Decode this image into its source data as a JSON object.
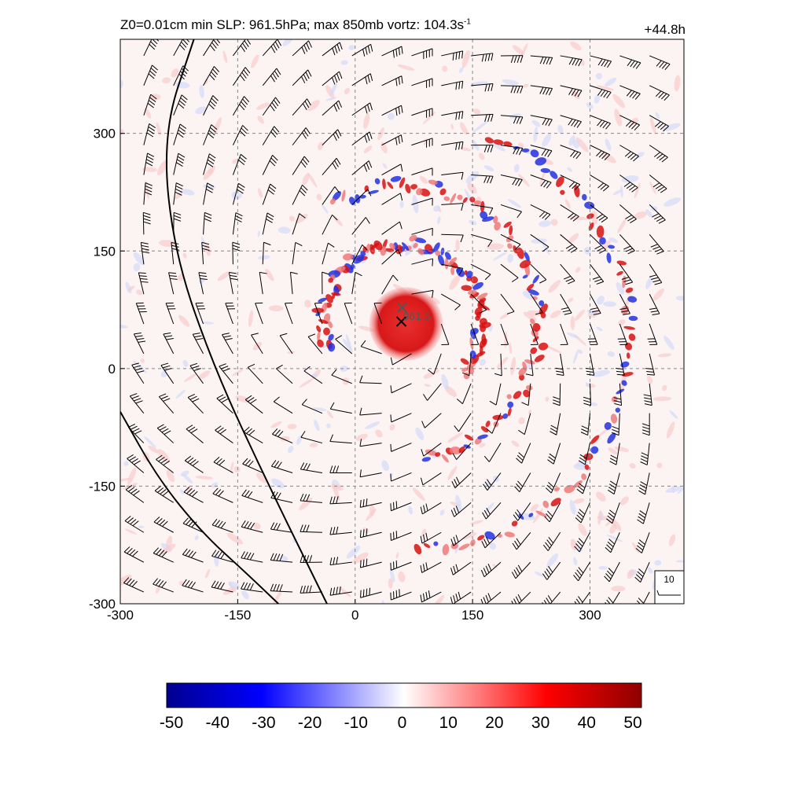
{
  "header": {
    "title_prefix": "Z0=0.01cm  min SLP: 961.5hPa; max 850mb vortz: 104.3s",
    "title_superscript": "-1",
    "time_label": "+44.8h"
  },
  "chart_data": {
    "type": "heatmap",
    "field": "850mb relative vorticity with wind barbs",
    "x_range": [
      -300,
      420
    ],
    "y_range": [
      -300,
      420
    ],
    "x_ticks": [
      -300,
      -150,
      0,
      150,
      300
    ],
    "y_ticks": [
      -300,
      -150,
      0,
      150,
      300
    ],
    "x_tick_labels": [
      "-300",
      "-150",
      "0",
      "150",
      "300"
    ],
    "y_tick_labels": [
      "-300",
      "-150",
      "0",
      "150",
      "300"
    ],
    "grid": true,
    "min_slp": 961.5,
    "min_slp_label": "961.5",
    "max_vorticity": 104.3,
    "center_markers": [
      {
        "x": 60,
        "y": 78
      },
      {
        "x": 59,
        "y": 60
      }
    ],
    "eye_core": {
      "x": 65,
      "y": 57,
      "radius": 47
    },
    "rainbands": [
      {
        "x": 60,
        "y": 60,
        "r": 100,
        "start_deg": -40,
        "end_deg": 200
      },
      {
        "x": 60,
        "y": 60,
        "r": 175,
        "start_deg": -80,
        "end_deg": 120
      },
      {
        "x": 80,
        "y": 40,
        "r": 270,
        "start_deg": -90,
        "end_deg": 70
      }
    ],
    "coastlines": [
      {
        "points": [
          [
            -206,
            420
          ],
          [
            -246,
            300
          ],
          [
            -232,
            150
          ],
          [
            -180,
            0
          ],
          [
            -110,
            -150
          ],
          [
            -36,
            -300
          ]
        ]
      },
      {
        "points": [
          [
            -300,
            -55
          ],
          [
            -252,
            -140
          ],
          [
            -195,
            -210
          ],
          [
            -140,
            -260
          ],
          [
            -98,
            -300
          ]
        ]
      }
    ],
    "reference_barb": {
      "value": 10,
      "label": "10"
    },
    "colorbar": {
      "min": -50,
      "max": 50,
      "ticks": [
        -50,
        -40,
        -30,
        -20,
        -10,
        0,
        10,
        20,
        30,
        40,
        50
      ],
      "tick_labels": [
        "-50",
        "-40",
        "-30",
        "-20",
        "-10",
        "0",
        "10",
        "20",
        "30",
        "40",
        "50"
      ],
      "colors": [
        "#00008f",
        "#0000ff",
        "#ffffff",
        "#ff0000",
        "#8f0000"
      ]
    }
  }
}
